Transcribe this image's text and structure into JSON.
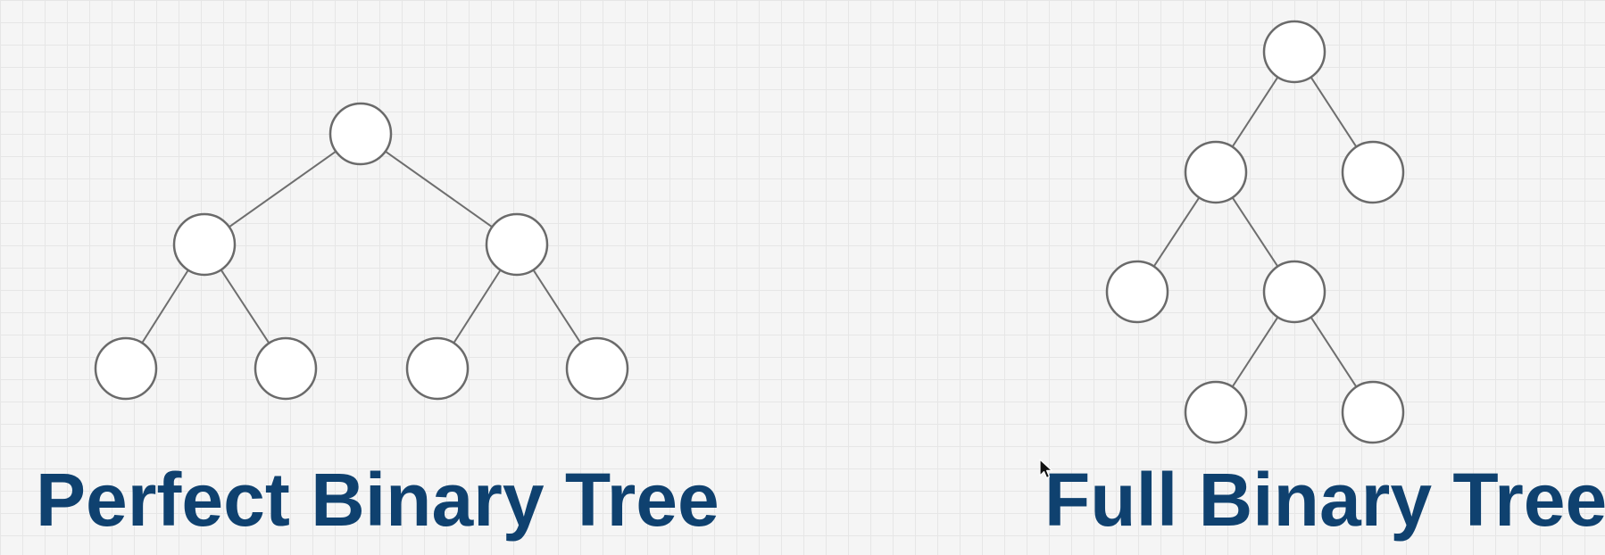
{
  "diagrams": [
    {
      "caption": "Perfect Binary Tree",
      "nodes": [
        {
          "id": "root"
        },
        {
          "id": "left",
          "parent": "root"
        },
        {
          "id": "right",
          "parent": "root"
        },
        {
          "id": "left-left",
          "parent": "left"
        },
        {
          "id": "left-right",
          "parent": "left"
        },
        {
          "id": "right-left",
          "parent": "right"
        },
        {
          "id": "right-right",
          "parent": "right"
        }
      ]
    },
    {
      "caption": "Full Binary Tree",
      "nodes": [
        {
          "id": "root"
        },
        {
          "id": "left",
          "parent": "root"
        },
        {
          "id": "right",
          "parent": "root"
        },
        {
          "id": "left-left",
          "parent": "left"
        },
        {
          "id": "left-right",
          "parent": "left"
        },
        {
          "id": "left-right-left",
          "parent": "left-right"
        },
        {
          "id": "left-right-right",
          "parent": "left-right"
        }
      ]
    }
  ],
  "colors": {
    "caption": "#0f416f",
    "node_fill": "#ffffff",
    "node_stroke": "#6a6a6a",
    "edge": "#6e6e6e",
    "background": "#f5f5f5",
    "grid": "#e6e6e6"
  },
  "icons": {
    "cursor": "mouse-pointer-icon"
  }
}
